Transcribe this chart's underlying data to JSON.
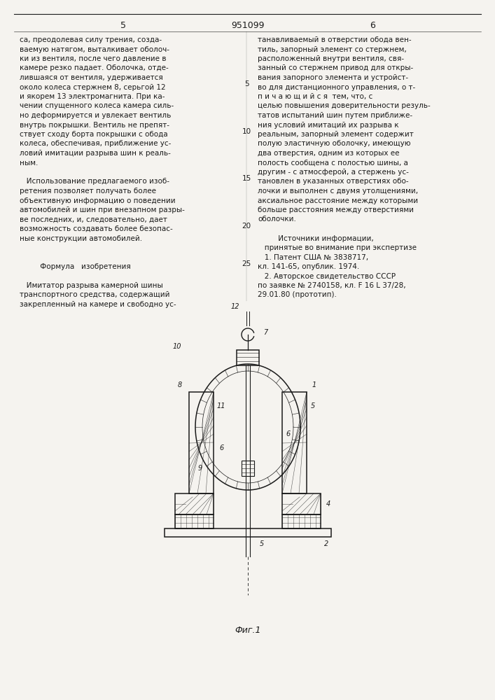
{
  "page_width": 7.07,
  "page_height": 10.0,
  "bg_color": "#f5f3ef",
  "text_color": "#1a1a1a",
  "left_col_lines": [
    "са, преодолевая силу трения, созда-",
    "ваемую натягом, выталкивает оболоч-",
    "ки из вентиля, после чего давление в",
    "камере резко падает. Оболочка, отде-",
    "лившаяся от вентиля, удерживается",
    "около колеса стержнем 8, серьгой 12",
    "и якорем 13 электромагнита. При ка-",
    "чении спущенного колеса камера силь-",
    "но деформируется и увлекает вентиль",
    "внутрь покрышки. Вентиль не препят-",
    "ствует сходу борта покрышки с обода",
    "колеса, обеспечивая, приближение ус-",
    "ловий имитации разрыва шин к реаль-",
    "ным.",
    "",
    "   Использование предлагаемого изоб-",
    "ретения позволяет получать более",
    "объективную информацию о поведении",
    "автомобилей и шин при внезапном разры-",
    "ве последних, и, следовательно, дает",
    "возможность создавать более безопас-",
    "ные конструкции автомобилей.",
    "",
    "",
    "         Формула   изобретения",
    "",
    "   Имитатор разрыва камерной шины",
    "транспортного средства, содержащий",
    "закрепленный на камере и свободно ус-"
  ],
  "right_col_lines": [
    "танавливаемый в отверстии обода вен-",
    "тиль, запорный элемент со стержнем,",
    "расположенный внутри вентиля, свя-",
    "занный со стержнем привод для откры-",
    "вания запорного элемента и устройст-",
    "во для дистанционного управления, о т-",
    "п и ч а ю щ и й с я  тем, что, с",
    "целью повышения доверительности резуль-",
    "татов испытаний шин путем приближе-",
    "ния условий имитаций их разрыва к",
    "реальным, запорный элемент содержит",
    "полую эластичную оболочку, имеющую",
    "два отверстия, одним из которых ее",
    "полость сообщена с полостью шины, а",
    "другим - с атмосферой, а стержень ус-",
    "тановлен в указанных отверстиях обо-",
    "лочки и выполнен с двумя утолщениями,",
    "аксиальное расстояние между которыми",
    "больше расстояния между отверстиями",
    "оболочки.",
    "",
    "         Источники информации,",
    "   принятые во внимание при экспертизе",
    "   1. Патент США № 3838717,",
    "кл. 141-65, опублик. 1974.",
    "   2. Авторское свидетельство СССР",
    "по заявке № 2740158, кл. F 16 L 37/28,",
    "29.01.80 (прототип)."
  ],
  "line_numbers": [
    5,
    10,
    15,
    20,
    25
  ],
  "line_number_rows": [
    5,
    10,
    15,
    20,
    24
  ],
  "fig_caption": "Фиг.1"
}
